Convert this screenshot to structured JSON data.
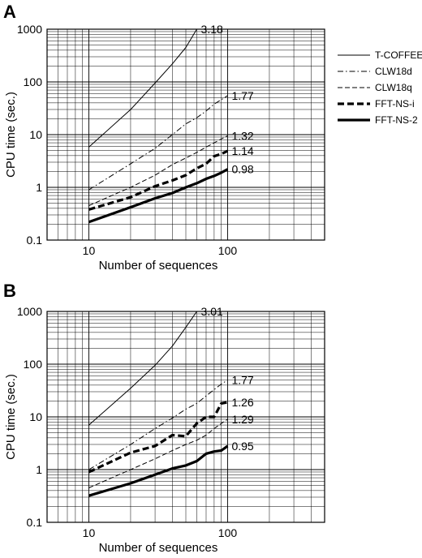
{
  "legend": {
    "placement": "right",
    "entries": [
      {
        "label": "T-COFFEE",
        "style": "thin-solid"
      },
      {
        "label": "CLW18d",
        "style": "dash-dot"
      },
      {
        "label": "CLW18q",
        "style": "thin-dashed"
      },
      {
        "label": "FFT-NS-i",
        "style": "thick-dashed"
      },
      {
        "label": "FFT-NS-2",
        "style": "thick-solid"
      }
    ]
  },
  "chart_data": [
    {
      "type": "line",
      "panel": "A",
      "xlabel": "Number of sequences",
      "ylabel": "CPU time (sec.)",
      "xscale": "log",
      "yscale": "log",
      "xlim": [
        5,
        500
      ],
      "ylim": [
        0.1,
        1000
      ],
      "x_ticks": [
        "10",
        "100"
      ],
      "y_ticks": [
        "0.1",
        "1",
        "10",
        "100",
        "1000"
      ],
      "grid": true,
      "series": [
        {
          "name": "T-COFFEE",
          "points": [
            [
              10,
              5.8
            ],
            [
              20,
              30
            ],
            [
              30,
              95
            ],
            [
              40,
              220
            ],
            [
              50,
              450
            ],
            [
              60,
              1000
            ]
          ],
          "end_label": "3.18"
        },
        {
          "name": "CLW18d",
          "points": [
            [
              10,
              0.9
            ],
            [
              20,
              2.8
            ],
            [
              30,
              5.5
            ],
            [
              40,
              10
            ],
            [
              50,
              16
            ],
            [
              60,
              21
            ],
            [
              70,
              28
            ],
            [
              80,
              38
            ],
            [
              90,
              46
            ],
            [
              100,
              55
            ]
          ],
          "end_label": "1.77"
        },
        {
          "name": "CLW18q",
          "points": [
            [
              10,
              0.45
            ],
            [
              20,
              1
            ],
            [
              30,
              1.7
            ],
            [
              40,
              2.7
            ],
            [
              50,
              3.6
            ],
            [
              60,
              4.6
            ],
            [
              70,
              5.8
            ],
            [
              80,
              7
            ],
            [
              90,
              8.3
            ],
            [
              100,
              9.5
            ]
          ],
          "end_label": "1.32"
        },
        {
          "name": "FFT-NS-i",
          "points": [
            [
              10,
              0.38
            ],
            [
              20,
              0.65
            ],
            [
              30,
              1.05
            ],
            [
              40,
              1.35
            ],
            [
              50,
              1.7
            ],
            [
              60,
              2.3
            ],
            [
              70,
              2.8
            ],
            [
              80,
              3.9
            ],
            [
              90,
              4.3
            ],
            [
              100,
              4.9
            ]
          ],
          "end_label": "1.14"
        },
        {
          "name": "FFT-NS-2",
          "points": [
            [
              10,
              0.22
            ],
            [
              20,
              0.42
            ],
            [
              30,
              0.62
            ],
            [
              40,
              0.78
            ],
            [
              50,
              1.0
            ],
            [
              60,
              1.2
            ],
            [
              70,
              1.45
            ],
            [
              80,
              1.65
            ],
            [
              90,
              1.9
            ],
            [
              100,
              2.2
            ]
          ],
          "end_label": "0.98"
        }
      ]
    },
    {
      "type": "line",
      "panel": "B",
      "xlabel": "Number of sequences",
      "ylabel": "CPU time (sec.)",
      "xscale": "log",
      "yscale": "log",
      "xlim": [
        5,
        500
      ],
      "ylim": [
        0.1,
        1000
      ],
      "x_ticks": [
        "10",
        "100"
      ],
      "y_ticks": [
        "0.1",
        "1",
        "10",
        "100",
        "1000"
      ],
      "grid": true,
      "series": [
        {
          "name": "T-COFFEE",
          "points": [
            [
              10,
              7
            ],
            [
              20,
              35
            ],
            [
              30,
              95
            ],
            [
              40,
              220
            ],
            [
              50,
              500
            ],
            [
              60,
              1000
            ]
          ],
          "end_label": "3.01"
        },
        {
          "name": "CLW18d",
          "points": [
            [
              10,
              1.0
            ],
            [
              20,
              3
            ],
            [
              30,
              6
            ],
            [
              40,
              9.5
            ],
            [
              50,
              14
            ],
            [
              60,
              18
            ],
            [
              70,
              25
            ],
            [
              80,
              33
            ],
            [
              90,
              42
            ],
            [
              100,
              50
            ]
          ],
          "end_label": "1.77"
        },
        {
          "name": "CLW18q",
          "points": [
            [
              10,
              0.45
            ],
            [
              20,
              1.0
            ],
            [
              30,
              1.6
            ],
            [
              40,
              2.3
            ],
            [
              50,
              3.0
            ],
            [
              60,
              3.6
            ],
            [
              70,
              4.5
            ],
            [
              80,
              6
            ],
            [
              90,
              7.5
            ],
            [
              100,
              9
            ]
          ],
          "end_label": "1.29"
        },
        {
          "name": "FFT-NS-i",
          "points": [
            [
              10,
              0.9
            ],
            [
              20,
              2.1
            ],
            [
              30,
              2.8
            ],
            [
              40,
              4.5
            ],
            [
              50,
              4.3
            ],
            [
              60,
              7.5
            ],
            [
              70,
              10
            ],
            [
              80,
              10
            ],
            [
              90,
              18
            ],
            [
              100,
              19
            ]
          ],
          "end_label": "1.26"
        },
        {
          "name": "FFT-NS-2",
          "points": [
            [
              10,
              0.32
            ],
            [
              20,
              0.55
            ],
            [
              30,
              0.8
            ],
            [
              40,
              1.05
            ],
            [
              50,
              1.2
            ],
            [
              60,
              1.45
            ],
            [
              70,
              2.0
            ],
            [
              80,
              2.2
            ],
            [
              90,
              2.3
            ],
            [
              100,
              2.8
            ]
          ],
          "end_label": "0.95"
        }
      ]
    }
  ]
}
